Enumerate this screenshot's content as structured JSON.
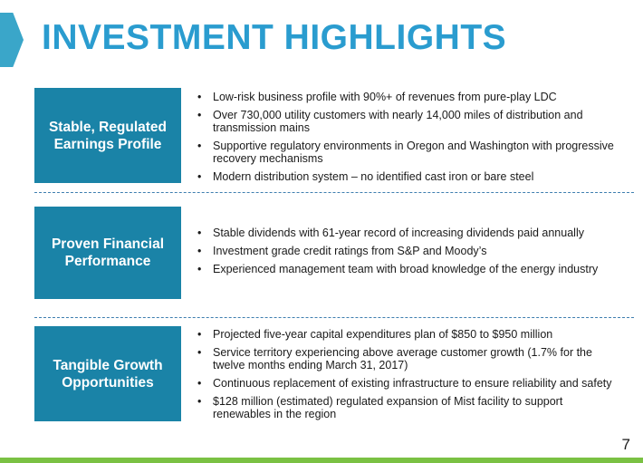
{
  "title": "INVESTMENT HIGHLIGHTS",
  "colors": {
    "title": "#2a9ccf",
    "section_box": "#1a83a7",
    "chevron": "#3aa6c9",
    "divider": "#3f7fb0",
    "footer_bar": "#7ac143"
  },
  "sections": [
    {
      "label": "Stable, Regulated Earnings Profile",
      "bullets": [
        "Low-risk business profile with 90%+ of revenues from pure-play LDC",
        "Over 730,000 utility customers with nearly 14,000 miles of distribution and transmission mains",
        "Supportive regulatory environments in Oregon and Washington with progressive recovery mechanisms",
        "Modern distribution system – no identified cast iron or bare steel"
      ]
    },
    {
      "label": "Proven Financial Performance",
      "bullets": [
        "Stable dividends with 61-year record of increasing dividends paid annually",
        "Investment grade credit ratings from S&P and Moody’s",
        "Experienced management team with broad knowledge of the energy industry"
      ]
    },
    {
      "label": "Tangible Growth Opportunities",
      "bullets": [
        "Projected five-year capital expenditures plan of $850 to $950 million",
        "Service territory experiencing above average customer growth (1.7% for the twelve months ending March 31, 2017)",
        "Continuous replacement of existing infrastructure to ensure reliability and safety",
        "$128 million (estimated) regulated expansion of Mist facility to support renewables in the region"
      ]
    }
  ],
  "page_number": "7"
}
